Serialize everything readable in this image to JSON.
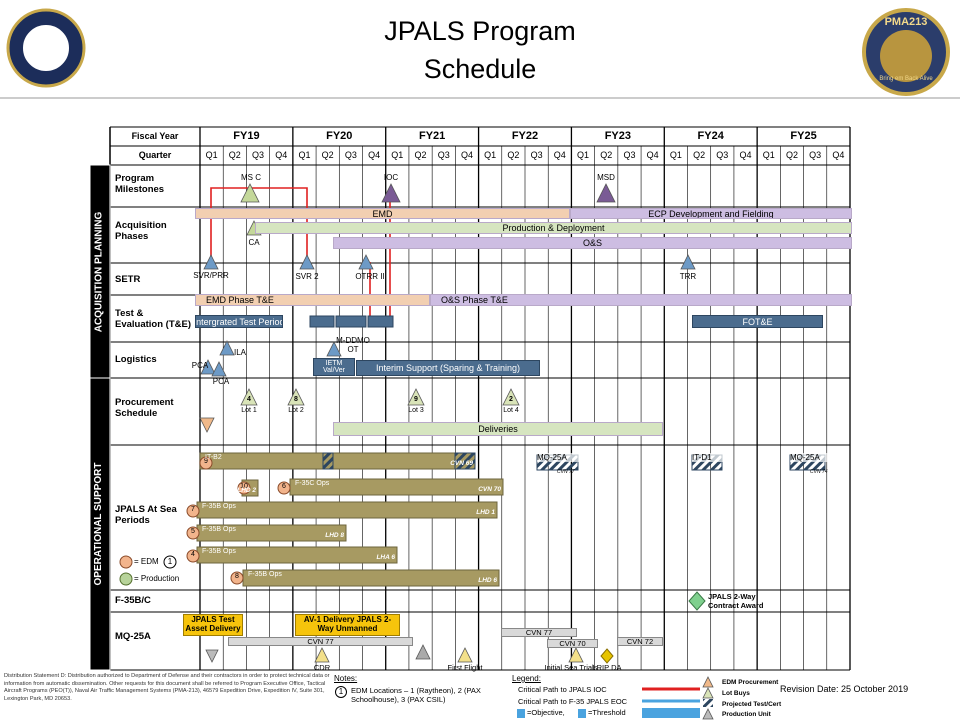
{
  "header": {
    "title": "JPALS Program",
    "subtitle": "Schedule",
    "right_logo": {
      "top": "PMA213",
      "bottom": "Bring em Back Alive"
    }
  },
  "grid": {
    "fiscal_year_label": "Fiscal Year",
    "quarter_label": "Quarter",
    "years": [
      "FY19",
      "FY20",
      "FY21",
      "FY22",
      "FY23",
      "FY24",
      "FY25"
    ],
    "quarters": [
      "Q1",
      "Q2",
      "Q3",
      "Q4"
    ]
  },
  "sections": [
    "ACQUISITION PLANNING",
    "OPERATIONAL SUPPORT"
  ],
  "rows": [
    "Program Milestones",
    "Acquisition Phases",
    "SETR",
    "Test & Evaluation (T&E)",
    "Logistics",
    "Procurement Schedule",
    "JPALS At Sea Periods",
    "F-35B/C",
    "MQ-25A"
  ],
  "bars": [
    "EMD",
    "ECP Development and Fielding",
    "Production & Deployment",
    "O&S",
    "EMD Phase T&E",
    "O&S Phase T&E",
    "Intergrated  Test Period",
    "FOT&E",
    "IETM Val/Ver",
    "Interim Support (Sparing & Training)",
    "Deliveries"
  ],
  "milestones": [
    "MS C",
    "IOC",
    "MSD",
    "CA",
    "SVR/PRR",
    "SVR 2",
    "OTRR II",
    "TRR",
    "ILA",
    "PCA",
    "PCA",
    "M-DDMO OT"
  ],
  "lots": [
    {
      "count": 4,
      "label": "Lot 1"
    },
    {
      "count": 8,
      "label": "Lot 2"
    },
    {
      "count": 9,
      "label": "Lot 3"
    },
    {
      "count": 2,
      "label": "Lot 4"
    }
  ],
  "ships": [
    {
      "number": 9,
      "start": "IT-B2",
      "end": "CVN 69"
    },
    {
      "number": 10,
      "end": "LHD 2"
    },
    {
      "number": 6,
      "start": "F-35C Ops",
      "end": "CVN 70"
    },
    {
      "number": 7,
      "start": "F-35B Ops",
      "end": "LHD 1"
    },
    {
      "number": 5,
      "start": "F-35B Ops",
      "end": "LHD 8"
    },
    {
      "number": 4,
      "start": "F-35B Ops",
      "end": "LHA 6"
    },
    {
      "number": 8,
      "start": "F-35B Ops",
      "end": "LHD 6"
    }
  ],
  "tests": [
    {
      "top": "MQ-25A",
      "bottom": "CVN 77"
    },
    {
      "top": "IT-D1"
    },
    {
      "top": "MQ-25A",
      "bottom": "CVN 74"
    }
  ],
  "sea_legend": {
    "edm": "= EDM",
    "edm_number": 1,
    "production": "= Production"
  },
  "f35": {
    "event": "JPALS 2-Way Contract Award"
  },
  "mq25": {
    "boxes": [
      "JPALS Test Asset Delivery",
      "AV-1 Delivery JPALS 2-Way Unmanned"
    ],
    "bars": [
      "CVN 77",
      "CVN 77",
      "CVN 70",
      "CVN 72"
    ],
    "events": [
      "CDR",
      "First Flight",
      "Initial Sea Trials",
      "LRIP DA"
    ]
  },
  "footer": {
    "distribution": "Distribution Statement D: Distribution authorized to Department of Defense and their contractors in order to protect technical data or information from automatic dissemination. Other requests for this document shall be referred to Program Executive Office, Tactical Aircraft Programs (PEO(T)), Naval Air Traffic Management Systems (PMA-213), 46579 Expedition Drive, Expedition IV, Suite 301, Lexington Park, MD 20653.",
    "notes_title": "Notes:",
    "note_number": 1,
    "note": "EDM Locations – 1 (Raytheon), 2 (PAX Schoolhouse), 3 (PAX CSIL)",
    "legend_title": "Legend:",
    "legend": [
      "Critical Path to JPALS IOC",
      "Critical Path to F-35 JPALS EOC",
      "=Objective,",
      "=Threshold"
    ],
    "key": [
      "EDM Procurement",
      "Lot Buys",
      "Projected Test/Cert",
      "Production Unit"
    ],
    "revision": "Revision Date: 25 October 2019"
  }
}
